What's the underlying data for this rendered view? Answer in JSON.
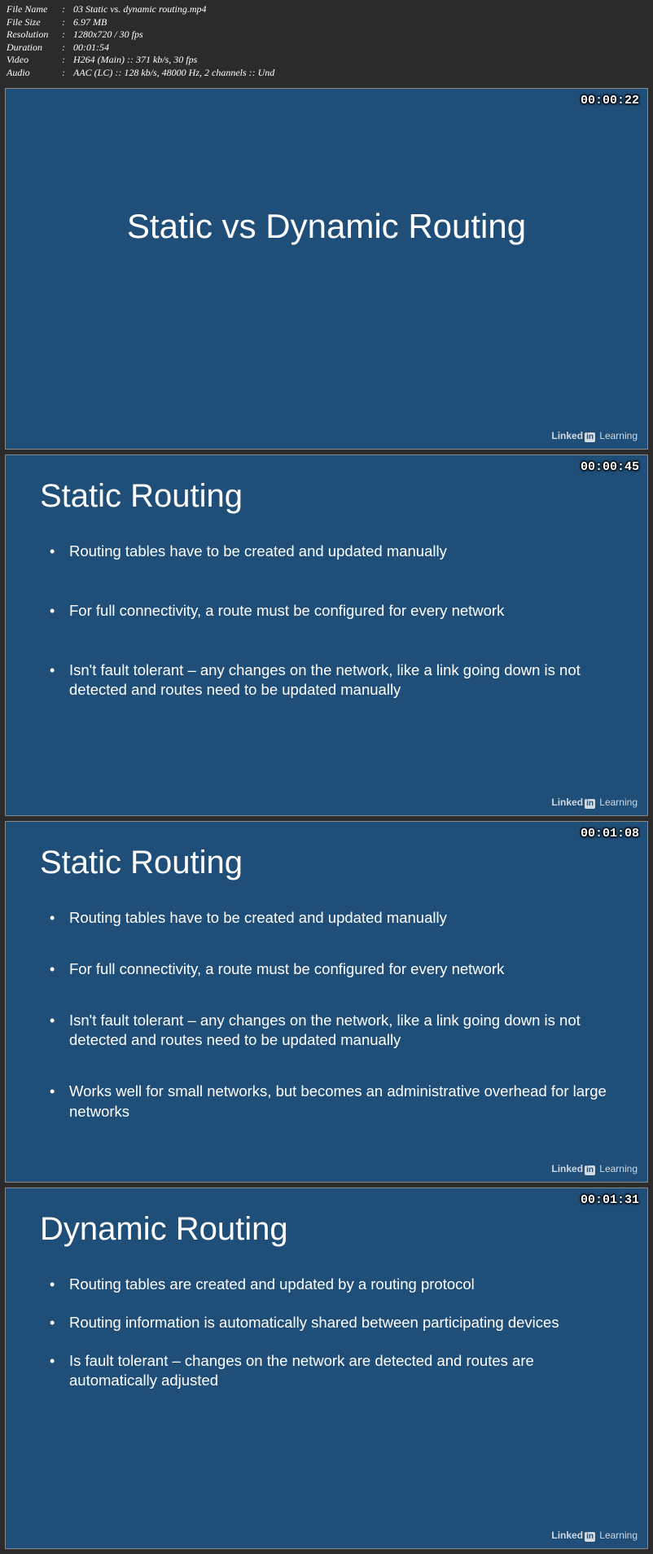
{
  "metadata": {
    "rows": [
      {
        "label": "File Name",
        "value": "03 Static vs. dynamic routing.mp4"
      },
      {
        "label": "File Size",
        "value": "6.97 MB"
      },
      {
        "label": "Resolution",
        "value": "1280x720 / 30 fps"
      },
      {
        "label": "Duration",
        "value": "00:01:54"
      },
      {
        "label": "Video",
        "value": "H264 (Main) :: 371 kb/s, 30 fps"
      },
      {
        "label": "Audio",
        "value": "AAC (LC) :: 128 kb/s, 48000 Hz, 2 channels :: Und"
      }
    ]
  },
  "watermark": {
    "linked": "Linked",
    "in": "in",
    "learning": "Learning"
  },
  "slides": [
    {
      "timestamp": "00:00:22",
      "title_center": "Static vs Dynamic Routing"
    },
    {
      "timestamp": "00:00:45",
      "heading": "Static Routing",
      "bullets": [
        {
          "text": "Routing tables have to be created and updated manually",
          "gap": 48
        },
        {
          "text": "For full connectivity, a route must be configured for every network",
          "gap": 48
        },
        {
          "text": "Isn't fault tolerant – any changes on the network, like a link going down is not detected and routes need to be updated manually",
          "gap": 0
        }
      ]
    },
    {
      "timestamp": "00:01:08",
      "heading": "Static Routing",
      "bullets": [
        {
          "text": "Routing tables have to be created and updated manually",
          "gap": 38
        },
        {
          "text": "For full connectivity, a route must be configured for every network",
          "gap": 38
        },
        {
          "text": "Isn't fault tolerant – any changes on the network, like a link going down is not detected and routes need to be updated manually",
          "gap": 38
        },
        {
          "text": "Works well for small networks, but becomes an administrative overhead for large networks",
          "gap": 0
        }
      ]
    },
    {
      "timestamp": "00:01:31",
      "heading": "Dynamic Routing",
      "bullets": [
        {
          "text": "Routing tables are created and updated by a routing protocol",
          "gap": 22
        },
        {
          "text": "Routing information is automatically shared between participating devices",
          "gap": 22
        },
        {
          "text": "Is fault tolerant – changes on the network are detected and routes are automatically adjusted",
          "gap": 0
        }
      ]
    }
  ],
  "colors": {
    "slide_bg": "#1f4e79",
    "page_bg": "#2b2b2b",
    "text": "#ffffff"
  }
}
